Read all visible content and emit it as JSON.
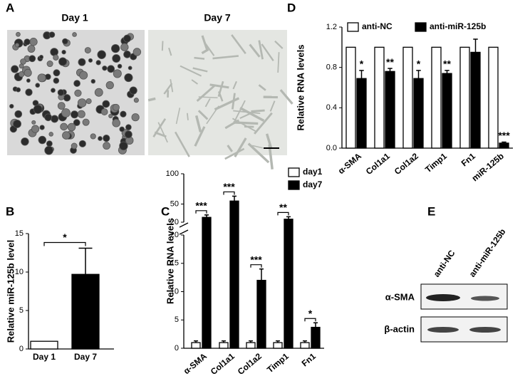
{
  "images": {
    "panel": "A",
    "titles": [
      "Day 1",
      "Day 7"
    ]
  },
  "blot": {
    "panel": "E",
    "columns": [
      "anti-NC",
      "anti-miR-125b"
    ],
    "rows": [
      "α-SMA",
      "β-actin"
    ]
  },
  "chart_data": [
    {
      "type": "bar",
      "panel": "B",
      "y_label": "Relative miR-125b level",
      "categories": [
        "Day 1",
        "Day 7"
      ],
      "values": [
        1,
        9.7
      ],
      "errors": [
        null,
        3.4
      ],
      "colors": [
        "#ffffff",
        "#000000"
      ],
      "ylim": [
        0,
        15
      ],
      "yticks": [
        0,
        5,
        10,
        15
      ],
      "annotations": [
        "*"
      ]
    },
    {
      "type": "grouped_bar",
      "panel": "C",
      "y_label": "Relative RNA levels",
      "categories": [
        "α-SMA",
        "Col1a1",
        "Col1a2",
        "Timp1",
        "Fn1"
      ],
      "series": [
        {
          "name": "day1",
          "color": "#ffffff",
          "values": [
            1,
            1,
            1,
            1,
            1
          ],
          "errors": [
            0.3,
            0.3,
            0.3,
            0.3,
            0.3
          ]
        },
        {
          "name": "day7",
          "color": "#000000",
          "values": [
            28,
            55,
            12,
            25,
            3.7
          ],
          "errors": [
            4,
            8,
            2,
            4,
            0.8
          ]
        }
      ],
      "y_segments": [
        {
          "ylim": [
            0,
            20
          ],
          "yticks": [
            0,
            5,
            10,
            15,
            20
          ]
        },
        {
          "ylim": [
            20,
            100
          ],
          "yticks": [
            20,
            50,
            100
          ]
        }
      ],
      "annotations": [
        "***",
        "***",
        "***",
        "**",
        "*"
      ],
      "legend": "upper right"
    },
    {
      "type": "grouped_bar",
      "panel": "D",
      "y_label": "Relative RNA levels",
      "categories": [
        "α-SMA",
        "Col1a1",
        "Col1a2",
        "Timp1",
        "Fn1",
        "miR-125b"
      ],
      "series": [
        {
          "name": "anti-NC",
          "color": "#ffffff",
          "values": [
            1,
            1,
            1,
            1,
            1,
            1
          ]
        },
        {
          "name": "anti-miR-125b",
          "color": "#000000",
          "values": [
            0.69,
            0.76,
            0.69,
            0.74,
            0.95,
            0.05
          ],
          "errors": [
            0.08,
            0.03,
            0.08,
            0.03,
            0.13,
            0.01
          ]
        }
      ],
      "ylim": [
        0,
        1.2
      ],
      "yticks": [
        {
          "value": 0,
          "label": "0.0"
        },
        0.4,
        0.8,
        1.2
      ],
      "annotations": [
        "*",
        "**",
        "*",
        "**",
        null,
        "***"
      ],
      "legend": "top"
    }
  ]
}
